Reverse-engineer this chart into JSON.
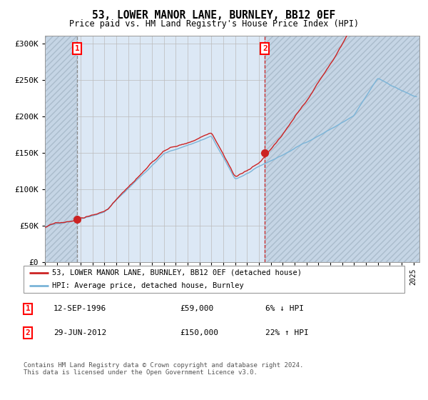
{
  "title": "53, LOWER MANOR LANE, BURNLEY, BB12 0EF",
  "subtitle": "Price paid vs. HM Land Registry's House Price Index (HPI)",
  "xlim_start": 1994.0,
  "xlim_end": 2025.5,
  "ylim_min": 0,
  "ylim_max": 310000,
  "yticks": [
    0,
    50000,
    100000,
    150000,
    200000,
    250000,
    300000
  ],
  "ytick_labels": [
    "£0",
    "£50K",
    "£100K",
    "£150K",
    "£200K",
    "£250K",
    "£300K"
  ],
  "transaction1_date": 1996.7,
  "transaction1_price": 59000,
  "transaction2_date": 2012.5,
  "transaction2_price": 150000,
  "legend_line1": "53, LOWER MANOR LANE, BURNLEY, BB12 0EF (detached house)",
  "legend_line2": "HPI: Average price, detached house, Burnley",
  "table_row1": [
    "1",
    "12-SEP-1996",
    "£59,000",
    "6% ↓ HPI"
  ],
  "table_row2": [
    "2",
    "29-JUN-2012",
    "£150,000",
    "22% ↑ HPI"
  ],
  "footnote": "Contains HM Land Registry data © Crown copyright and database right 2024.\nThis data is licensed under the Open Government Licence v3.0.",
  "line_color_hpi": "#7ab4d8",
  "line_color_price": "#cc2222",
  "bg_plot": "#dce8f5",
  "hatch_bg": "#c5d5e5",
  "xtick_start": 1994,
  "xtick_end": 2025
}
